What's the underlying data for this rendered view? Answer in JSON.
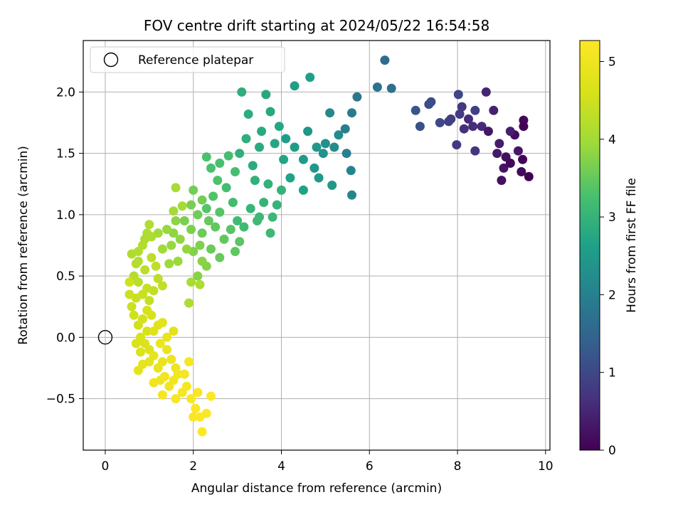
{
  "chart_data": {
    "type": "scatter",
    "title": "FOV centre drift starting at 2024/05/22 16:54:58",
    "xlabel": "Angular distance from reference (arcmin)",
    "ylabel": "Rotation from reference (arcmin)",
    "xlim": [
      -0.5,
      10.1
    ],
    "ylim": [
      -0.92,
      2.42
    ],
    "xticks": [
      0,
      2,
      4,
      6,
      8,
      10
    ],
    "xtick_labels": [
      "0",
      "2",
      "4",
      "6",
      "8",
      "10"
    ],
    "yticks": [
      -0.5,
      0.0,
      0.5,
      1.0,
      1.5,
      2.0
    ],
    "ytick_labels": [
      "−0.5",
      "0.0",
      "0.5",
      "1.0",
      "1.5",
      "2.0"
    ],
    "grid": true,
    "legend": {
      "position": "top-left",
      "entries": [
        {
          "label": "Reference platepar",
          "marker": "open-circle",
          "x": 0.0,
          "y": 0.0
        }
      ]
    },
    "colorbar": {
      "label": "Hours from first FF file",
      "colormap": "viridis",
      "range": [
        0,
        5.27
      ],
      "ticks": [
        0,
        1,
        2,
        3,
        4,
        5
      ],
      "tick_labels": [
        "0",
        "1",
        "2",
        "3",
        "4",
        "5"
      ]
    },
    "series": [
      {
        "color_value": "hours",
        "points": [
          [
            9.62,
            1.31,
            0.0
          ],
          [
            9.48,
            1.45,
            0.05
          ],
          [
            9.5,
            1.77,
            0.1
          ],
          [
            9.3,
            1.65,
            0.15
          ],
          [
            9.0,
            1.28,
            0.2
          ],
          [
            9.05,
            1.38,
            0.25
          ],
          [
            9.38,
            1.52,
            0.3
          ],
          [
            8.95,
            1.58,
            0.35
          ],
          [
            9.2,
            1.68,
            0.4
          ],
          [
            8.82,
            1.85,
            0.45
          ],
          [
            8.65,
            2.0,
            0.5
          ],
          [
            8.55,
            1.72,
            0.55
          ],
          [
            8.35,
            1.72,
            0.6
          ],
          [
            8.15,
            1.7,
            0.65
          ],
          [
            8.4,
            1.52,
            0.7
          ],
          [
            8.1,
            1.88,
            0.75
          ],
          [
            7.98,
            1.57,
            0.8
          ],
          [
            7.85,
            1.78,
            0.85
          ],
          [
            8.4,
            1.85,
            0.9
          ],
          [
            8.02,
            1.98,
            0.95
          ],
          [
            7.6,
            1.75,
            1.0
          ],
          [
            7.4,
            1.92,
            1.05
          ],
          [
            7.35,
            1.9,
            1.1
          ],
          [
            7.15,
            1.72,
            1.15
          ],
          [
            7.05,
            1.85,
            1.2
          ],
          [
            9.2,
            1.42,
            0.08
          ],
          [
            9.45,
            1.35,
            0.12
          ],
          [
            9.1,
            1.47,
            0.18
          ],
          [
            8.7,
            1.68,
            0.28
          ],
          [
            8.9,
            1.5,
            0.32
          ],
          [
            9.5,
            1.72,
            0.02
          ],
          [
            8.25,
            1.78,
            0.58
          ],
          [
            8.05,
            1.82,
            0.78
          ],
          [
            7.8,
            1.76,
            0.88
          ],
          [
            6.35,
            2.26,
            1.6
          ],
          [
            6.5,
            2.03,
            1.7
          ],
          [
            6.18,
            2.04,
            1.75
          ],
          [
            5.72,
            1.96,
            1.85
          ],
          [
            5.6,
            1.83,
            1.9
          ],
          [
            5.45,
            1.7,
            1.95
          ],
          [
            5.48,
            1.5,
            2.0
          ],
          [
            5.58,
            1.36,
            2.05
          ],
          [
            5.6,
            1.16,
            2.1
          ],
          [
            5.1,
            1.83,
            2.15
          ],
          [
            5.3,
            1.65,
            2.2
          ],
          [
            5.2,
            1.55,
            2.25
          ],
          [
            5.0,
            1.58,
            2.3
          ],
          [
            4.95,
            1.5,
            2.35
          ],
          [
            4.6,
            1.68,
            2.4
          ],
          [
            4.8,
            1.55,
            2.42
          ],
          [
            4.75,
            1.38,
            2.45
          ],
          [
            5.15,
            1.24,
            2.48
          ],
          [
            4.85,
            1.3,
            2.5
          ],
          [
            4.5,
            1.45,
            2.52
          ],
          [
            4.3,
            1.55,
            2.55
          ],
          [
            4.1,
            1.62,
            2.58
          ],
          [
            4.3,
            2.05,
            2.6
          ],
          [
            4.65,
            2.12,
            2.62
          ],
          [
            4.5,
            1.2,
            2.65
          ],
          [
            4.2,
            1.3,
            2.68
          ],
          [
            4.05,
            1.45,
            2.7
          ],
          [
            3.85,
            1.58,
            2.72
          ],
          [
            3.95,
            1.72,
            2.74
          ],
          [
            3.75,
            1.84,
            2.76
          ],
          [
            3.65,
            1.98,
            2.78
          ],
          [
            3.55,
            1.68,
            2.8
          ],
          [
            3.5,
            1.55,
            2.82
          ],
          [
            3.35,
            1.4,
            2.84
          ],
          [
            3.25,
            1.82,
            2.86
          ],
          [
            3.1,
            2.0,
            2.88
          ],
          [
            3.2,
            1.62,
            2.9
          ],
          [
            3.05,
            1.5,
            2.92
          ],
          [
            3.4,
            1.28,
            2.94
          ],
          [
            3.7,
            1.25,
            2.96
          ],
          [
            4.0,
            1.2,
            2.98
          ],
          [
            3.9,
            1.08,
            3.0
          ],
          [
            3.6,
            1.1,
            3.02
          ],
          [
            3.3,
            1.05,
            3.04
          ],
          [
            3.5,
            0.98,
            3.06
          ],
          [
            3.8,
            0.98,
            3.08
          ],
          [
            3.75,
            0.85,
            3.1
          ],
          [
            3.45,
            0.95,
            3.12
          ],
          [
            3.15,
            0.9,
            3.14
          ],
          [
            3.0,
            0.95,
            3.16
          ],
          [
            2.9,
            1.1,
            3.18
          ],
          [
            2.75,
            1.22,
            3.2
          ],
          [
            2.95,
            1.35,
            3.22
          ],
          [
            2.8,
            1.48,
            3.24
          ],
          [
            2.6,
            1.42,
            3.26
          ],
          [
            2.4,
            1.38,
            3.28
          ],
          [
            2.3,
            1.47,
            3.3
          ],
          [
            2.55,
            1.28,
            3.32
          ],
          [
            2.45,
            1.15,
            3.34
          ],
          [
            2.3,
            1.05,
            3.36
          ],
          [
            2.6,
            1.02,
            3.38
          ],
          [
            2.85,
            0.88,
            3.4
          ],
          [
            3.05,
            0.78,
            3.42
          ],
          [
            2.95,
            0.7,
            3.44
          ],
          [
            2.7,
            0.8,
            3.46
          ],
          [
            2.5,
            0.9,
            3.48
          ],
          [
            2.35,
            0.95,
            3.5
          ],
          [
            2.6,
            0.65,
            3.52
          ],
          [
            2.4,
            0.72,
            3.54
          ],
          [
            2.2,
            0.85,
            3.56
          ],
          [
            2.1,
            1.0,
            3.58
          ],
          [
            2.2,
            1.12,
            3.6
          ],
          [
            2.0,
            1.2,
            3.62
          ],
          [
            1.95,
            1.08,
            3.64
          ],
          [
            1.8,
            0.95,
            3.66
          ],
          [
            1.95,
            0.88,
            3.68
          ],
          [
            2.15,
            0.75,
            3.7
          ],
          [
            2.0,
            0.7,
            3.72
          ],
          [
            2.3,
            0.58,
            3.74
          ],
          [
            2.1,
            0.5,
            3.76
          ],
          [
            2.2,
            0.62,
            3.78
          ],
          [
            1.6,
            0.95,
            3.8
          ],
          [
            1.55,
            0.85,
            3.82
          ],
          [
            1.7,
            0.8,
            3.84
          ],
          [
            1.85,
            0.72,
            3.86
          ],
          [
            1.5,
            0.75,
            3.88
          ],
          [
            1.4,
            0.88,
            3.9
          ],
          [
            1.65,
            0.62,
            3.92
          ],
          [
            1.45,
            0.6,
            3.94
          ],
          [
            1.3,
            0.72,
            3.96
          ],
          [
            1.2,
            0.85,
            3.98
          ],
          [
            1.55,
            1.03,
            4.0
          ],
          [
            1.75,
            1.07,
            4.02
          ],
          [
            1.6,
            1.22,
            4.04
          ],
          [
            1.95,
            0.45,
            4.06
          ],
          [
            1.9,
            0.28,
            4.08
          ],
          [
            2.15,
            0.43,
            4.1
          ],
          [
            1.0,
            0.92,
            4.12
          ],
          [
            0.95,
            0.85,
            4.14
          ],
          [
            0.85,
            0.75,
            4.16
          ],
          [
            0.75,
            0.7,
            4.18
          ],
          [
            0.7,
            0.6,
            4.2
          ],
          [
            0.65,
            0.5,
            4.22
          ],
          [
            0.75,
            0.45,
            4.24
          ],
          [
            0.9,
            0.55,
            4.26
          ],
          [
            1.05,
            0.65,
            4.28
          ],
          [
            1.15,
            0.58,
            4.3
          ],
          [
            1.2,
            0.48,
            4.32
          ],
          [
            1.3,
            0.42,
            4.34
          ],
          [
            1.1,
            0.38,
            4.36
          ],
          [
            1.0,
            0.3,
            4.38
          ],
          [
            0.95,
            0.4,
            4.4
          ],
          [
            0.85,
            0.35,
            4.42
          ],
          [
            0.7,
            0.32,
            4.44
          ],
          [
            0.6,
            0.25,
            4.46
          ],
          [
            0.55,
            0.35,
            4.48
          ],
          [
            0.55,
            0.45,
            4.5
          ],
          [
            0.65,
            0.18,
            4.52
          ],
          [
            0.75,
            0.1,
            4.54
          ],
          [
            0.85,
            0.15,
            4.56
          ],
          [
            0.95,
            0.22,
            4.58
          ],
          [
            1.05,
            0.18,
            4.6
          ],
          [
            0.95,
            0.05,
            4.62
          ],
          [
            0.8,
            0.0,
            4.64
          ],
          [
            0.7,
            -0.05,
            4.66
          ],
          [
            0.8,
            -0.12,
            4.68
          ],
          [
            0.9,
            -0.05,
            4.7
          ],
          [
            1.0,
            -0.1,
            4.72
          ],
          [
            1.1,
            0.05,
            4.74
          ],
          [
            1.2,
            0.1,
            4.76
          ],
          [
            1.3,
            0.12,
            4.78
          ],
          [
            1.55,
            0.05,
            4.8
          ],
          [
            0.75,
            -0.27,
            4.82
          ],
          [
            0.85,
            -0.22,
            4.84
          ],
          [
            1.0,
            -0.2,
            4.86
          ],
          [
            1.1,
            -0.15,
            4.88
          ],
          [
            1.2,
            -0.25,
            4.9
          ],
          [
            1.3,
            -0.2,
            4.92
          ],
          [
            1.4,
            -0.1,
            4.94
          ],
          [
            1.5,
            -0.18,
            4.96
          ],
          [
            1.6,
            -0.25,
            4.98
          ],
          [
            1.25,
            -0.35,
            5.0
          ],
          [
            1.35,
            -0.32,
            5.02
          ],
          [
            1.45,
            -0.4,
            5.04
          ],
          [
            1.55,
            -0.35,
            5.06
          ],
          [
            1.65,
            -0.3,
            5.08
          ],
          [
            1.8,
            -0.3,
            5.1
          ],
          [
            1.9,
            -0.2,
            5.12
          ],
          [
            1.75,
            -0.45,
            5.14
          ],
          [
            1.85,
            -0.4,
            5.16
          ],
          [
            1.95,
            -0.5,
            5.18
          ],
          [
            2.1,
            -0.45,
            5.2
          ],
          [
            2.05,
            -0.58,
            5.22
          ],
          [
            2.15,
            -0.65,
            5.24
          ],
          [
            2.3,
            -0.62,
            5.25
          ],
          [
            2.4,
            -0.48,
            5.26
          ],
          [
            2.2,
            -0.77,
            5.27
          ],
          [
            1.3,
            -0.47,
            5.1
          ],
          [
            1.1,
            -0.37,
            5.05
          ],
          [
            1.6,
            -0.5,
            5.15
          ],
          [
            2.0,
            -0.65,
            5.2
          ],
          [
            1.4,
            0.0,
            4.9
          ],
          [
            1.25,
            -0.05,
            4.95
          ],
          [
            0.6,
            0.68,
            4.15
          ],
          [
            0.9,
            0.8,
            4.12
          ],
          [
            1.05,
            0.82,
            4.1
          ],
          [
            0.75,
            0.62,
            4.2
          ]
        ]
      }
    ]
  }
}
